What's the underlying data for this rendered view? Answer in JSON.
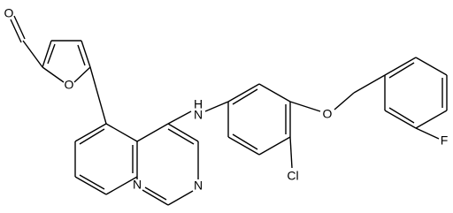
{
  "atoms": {
    "aldehyde_oxygen": "O",
    "furan_oxygen": "O",
    "amine_hydrogen": "H",
    "amine_nitrogen": "N",
    "ether_oxygen": "O",
    "chlorine": "Cl",
    "fluorine": "F",
    "ring_nitrogen_3": "N",
    "ring_nitrogen_1": "N"
  }
}
